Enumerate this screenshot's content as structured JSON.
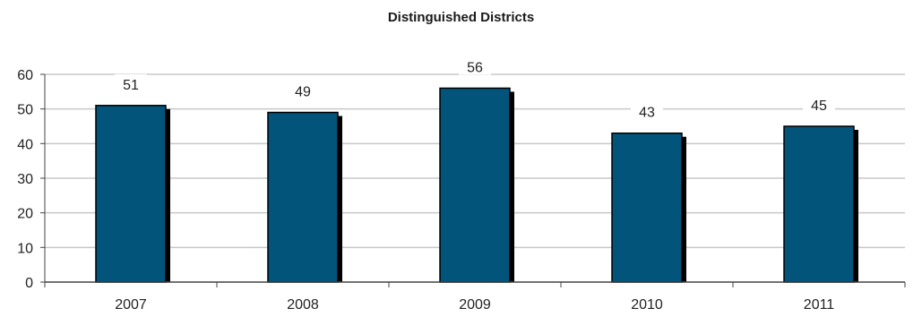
{
  "chart_data": {
    "type": "bar",
    "title": "Distinguished Districts",
    "categories": [
      "2007",
      "2008",
      "2009",
      "2010",
      "2011"
    ],
    "values": [
      51,
      49,
      56,
      43,
      45
    ],
    "ylim": [
      0,
      60
    ],
    "yticks": [
      0,
      10,
      20,
      30,
      40,
      50,
      60
    ],
    "grid": true,
    "data_labels": true,
    "bar_color": "#03547a",
    "shadow_color": "#000000",
    "grid_color": "#c8c8c8"
  }
}
